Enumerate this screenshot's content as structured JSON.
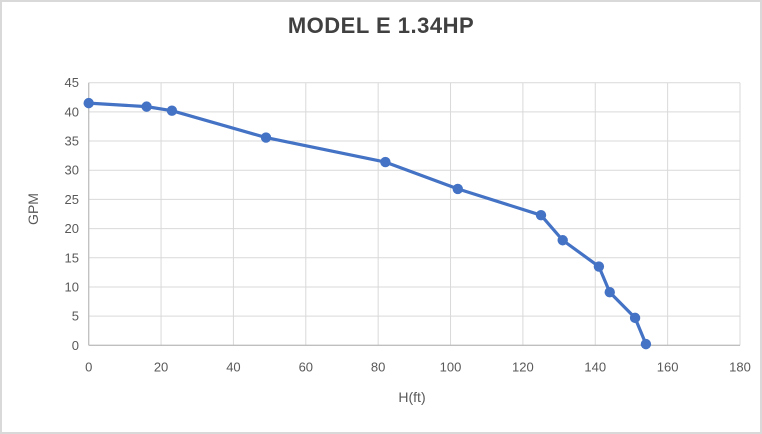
{
  "chart_data": {
    "type": "line",
    "title": "MODEL E 1.34HP",
    "xlabel": "H(ft)",
    "ylabel": "GPM",
    "xlim": [
      0,
      180
    ],
    "ylim": [
      0,
      45
    ],
    "x_ticks": [
      0,
      20,
      40,
      60,
      80,
      100,
      120,
      140,
      160,
      180
    ],
    "y_ticks": [
      0,
      5,
      10,
      15,
      20,
      25,
      30,
      35,
      40,
      45
    ],
    "grid": true,
    "legend_visible": false,
    "series": [
      {
        "name": "MODEL E 1.34HP",
        "color": "#4472C4",
        "marker": "circle",
        "points": [
          [
            0,
            41.5
          ],
          [
            16,
            40.9
          ],
          [
            23,
            40.2
          ],
          [
            49,
            35.6
          ],
          [
            82,
            31.4
          ],
          [
            102,
            26.8
          ],
          [
            125,
            22.3
          ],
          [
            131,
            18.0
          ],
          [
            141,
            13.5
          ],
          [
            144,
            9.1
          ],
          [
            151,
            4.7
          ],
          [
            154,
            0.2
          ]
        ]
      }
    ],
    "colors": {
      "gridline": "#D9D9D9",
      "axis_line": "#BFBFBF",
      "tick_text": "#595959",
      "axis_title_text": "#595959",
      "title_text": "#404040",
      "background": "#FFFFFF",
      "frame_border": "#D9D9D9"
    }
  }
}
